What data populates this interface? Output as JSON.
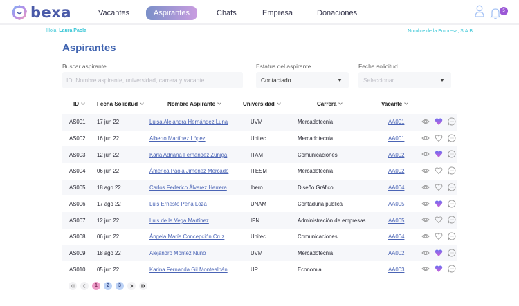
{
  "header": {
    "logo_text": "bexa",
    "nav": [
      {
        "label": "Vacantes",
        "active": false
      },
      {
        "label": "Aspirantes",
        "active": true
      },
      {
        "label": "Chats",
        "active": false
      },
      {
        "label": "Empresa",
        "active": false
      },
      {
        "label": "Donaciones",
        "active": false
      }
    ],
    "notification_count": "5"
  },
  "greeting": {
    "prefix": "Hola, ",
    "name": "Laura Paola"
  },
  "company_name": "Nombre de la Empresa, S.A.B.",
  "page_title": "Aspirantes",
  "filters": {
    "search": {
      "label": "Buscar aspirante",
      "placeholder": "ID, Nombre aspirante, universidad, carrera y vacante",
      "value": ""
    },
    "status": {
      "label": "Estatus del aspirante",
      "value": "Contactado"
    },
    "date": {
      "label": "Fecha solicitud",
      "placeholder": "Seleccionar"
    }
  },
  "table": {
    "columns": [
      "ID",
      "Fecha Solicitud",
      "Nombre Aspirante",
      "Universidad",
      "Carrera",
      "Vacante"
    ],
    "rows": [
      {
        "id": "AS001",
        "fecha": "17 jun 22",
        "nombre": "Luisa Alejandra Hernández Luna",
        "universidad": "UVM",
        "carrera": "Mercadotecnia",
        "vacante": "AA001",
        "favorito": true
      },
      {
        "id": "AS002",
        "fecha": "16 jun 22",
        "nombre": "Alberto Martínez López",
        "universidad": "Unitec",
        "carrera": "Mercadotecnia",
        "vacante": "AA001",
        "favorito": false
      },
      {
        "id": "AS003",
        "fecha": "12 jun 22",
        "nombre": "Karla Adriana Fernández Zuñiga",
        "universidad": "ITAM",
        "carrera": "Comunicaciones",
        "vacante": "AA002",
        "favorito": true
      },
      {
        "id": "AS004",
        "fecha": "06 jun 22",
        "nombre": "Ámerica Paola Jimenez Mercado",
        "universidad": "ITESM",
        "carrera": "Mercadotecnia",
        "vacante": "AA002",
        "favorito": false
      },
      {
        "id": "AS005",
        "fecha": "18 ago 22",
        "nombre": "Carlos Federico Álvarez Herrera",
        "universidad": "Ibero",
        "carrera": "Diseño Gráfico",
        "vacante": "AA004",
        "favorito": false
      },
      {
        "id": "AS006",
        "fecha": "17 ago 22",
        "nombre": "Luis Ernesto Peña Loza",
        "universidad": "UNAM",
        "carrera": "Contaduria pública",
        "vacante": "AA005",
        "favorito": true
      },
      {
        "id": "AS007",
        "fecha": "12 jun 22",
        "nombre": "Luis de la Vega Martínez",
        "universidad": "IPN",
        "carrera": "Administración de empresas",
        "vacante": "AA005",
        "favorito": false
      },
      {
        "id": "AS008",
        "fecha": "06 jun 22",
        "nombre": "Ángela María Concepción Cruz",
        "universidad": "Unitec",
        "carrera": "Comunicaciones",
        "vacante": "AA004",
        "favorito": false
      },
      {
        "id": "AS009",
        "fecha": "18 ago 22",
        "nombre": "Alejandro Montez Nuno",
        "universidad": "UVM",
        "carrera": "Mercadotecnia",
        "vacante": "AA002",
        "favorito": true
      },
      {
        "id": "AS010",
        "fecha": "05 jun 22",
        "nombre": "Karina Fernanda Gil Montealbán",
        "universidad": "UP",
        "carrera": "Economia",
        "vacante": "AA003",
        "favorito": true
      }
    ]
  },
  "pagination": {
    "first": "first-page",
    "prev": "prev-page",
    "pages": [
      "1",
      "2",
      "3"
    ],
    "current": "1",
    "next": "next-page",
    "last": "last-page"
  },
  "colors": {
    "brand": "#4a5aa8",
    "title": "#3f63b0",
    "accent_cyan": "#38c6d6",
    "nav_active_start": "#7a8fc8",
    "nav_active_end": "#c99de0",
    "badge": "#9b58d6",
    "heart_start": "#6a6ff0",
    "heart_end": "#d060d8"
  }
}
